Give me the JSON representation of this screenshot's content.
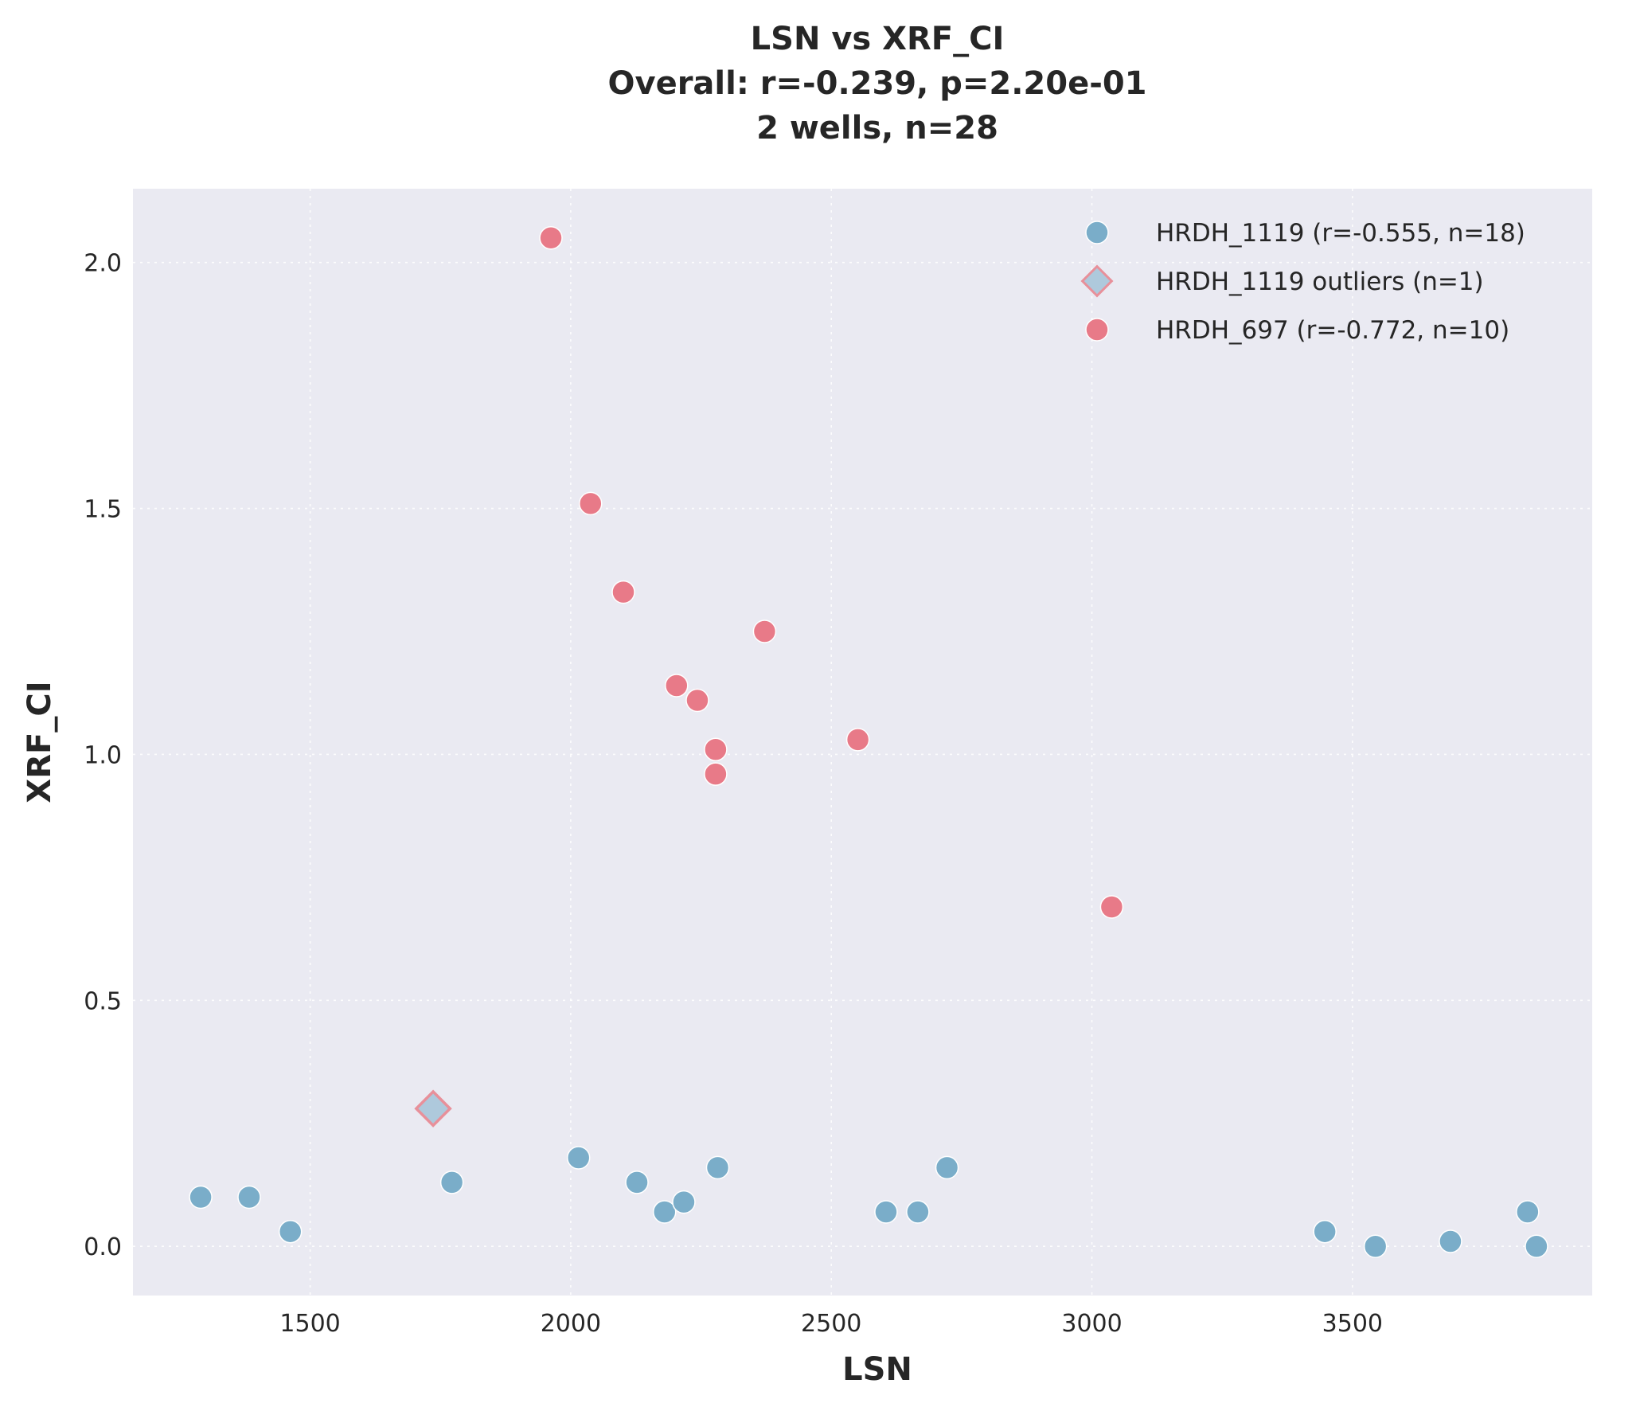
{
  "chart_data": {
    "type": "scatter",
    "title_lines": [
      "LSN vs XRF_CI",
      "Overall: r=-0.239, p=2.20e-01",
      "2 wells, n=28"
    ],
    "xlabel": "LSN",
    "ylabel": "XRF_CI",
    "xlim": [
      1160,
      3960
    ],
    "ylim": [
      -0.1,
      2.15
    ],
    "xticks": [
      1500,
      2000,
      2500,
      3000,
      3500
    ],
    "yticks": [
      0.0,
      0.5,
      1.0,
      1.5,
      2.0
    ],
    "xtick_labels": [
      "1500",
      "2000",
      "2500",
      "3000",
      "3500"
    ],
    "ytick_labels": [
      "0.0",
      "0.5",
      "1.0",
      "1.5",
      "2.0"
    ],
    "grid": true,
    "legend_position": "top-right",
    "background": "#eaeaf2",
    "series": [
      {
        "name": "HRDH_1119 (r=-0.555, n=18)",
        "marker": "circle",
        "color": "#7aadc9",
        "points": [
          [
            1290,
            0.1
          ],
          [
            1383,
            0.1
          ],
          [
            1462,
            0.03
          ],
          [
            1772,
            0.13
          ],
          [
            2015,
            0.18
          ],
          [
            2127,
            0.13
          ],
          [
            2180,
            0.07
          ],
          [
            2217,
            0.09
          ],
          [
            2282,
            0.16
          ],
          [
            2605,
            0.07
          ],
          [
            2666,
            0.07
          ],
          [
            2722,
            0.16
          ],
          [
            3447,
            0.03
          ],
          [
            3544,
            0.0
          ],
          [
            3688,
            0.01
          ],
          [
            3836,
            0.07
          ],
          [
            3853,
            0.0
          ]
        ]
      },
      {
        "name": "HRDH_1119 outliers (n=1)",
        "marker": "diamond",
        "color": "#aec9dc",
        "edge_color": "#e8909a",
        "points": [
          [
            1736,
            0.28
          ]
        ]
      },
      {
        "name": "HRDH_697 (r=-0.772, n=10)",
        "marker": "circle",
        "color": "#e87a88",
        "points": [
          [
            1962,
            2.05
          ],
          [
            2038,
            1.51
          ],
          [
            2101,
            1.33
          ],
          [
            2203,
            1.14
          ],
          [
            2243,
            1.11
          ],
          [
            2372,
            1.25
          ],
          [
            2278,
            1.01
          ],
          [
            2278,
            0.96
          ],
          [
            2551,
            1.03
          ],
          [
            3038,
            0.69
          ]
        ]
      }
    ]
  }
}
